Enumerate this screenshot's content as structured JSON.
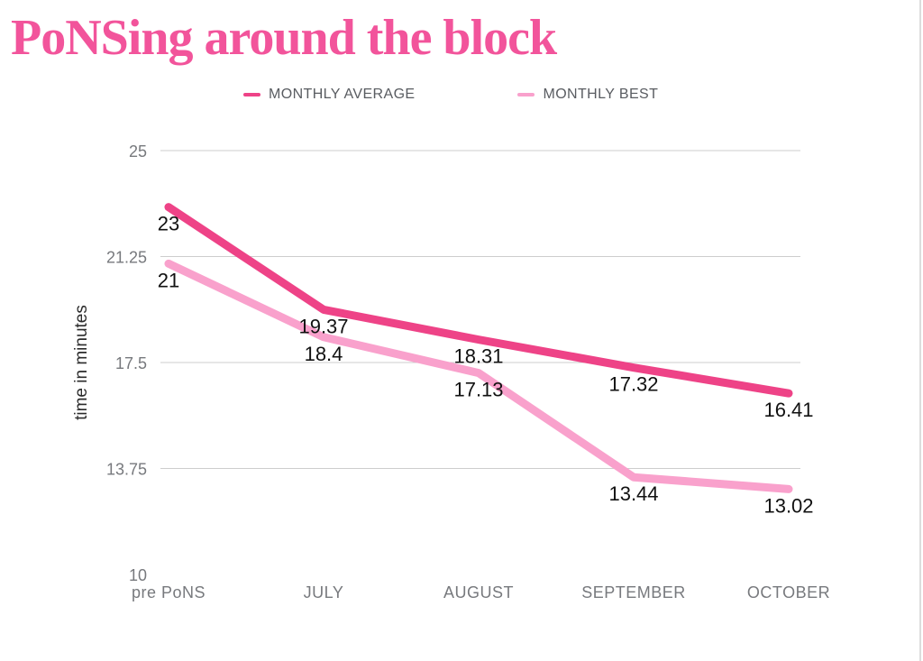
{
  "title": {
    "text": "PoNSing around the block",
    "color": "#f2549b"
  },
  "legend": {
    "items": [
      {
        "label": "MONTHLY AVERAGE",
        "color": "#ee4387"
      },
      {
        "label": "MONTHLY BEST",
        "color": "#f9a1cc"
      }
    ],
    "text_color": "#595c61"
  },
  "chart_data": {
    "type": "line",
    "title": "PoNSing around the block",
    "categories": [
      "pre PoNS",
      "JULY",
      "AUGUST",
      "SEPTEMBER",
      "OCTOBER"
    ],
    "series": [
      {
        "name": "MONTHLY AVERAGE",
        "color": "#ee4387",
        "values": [
          23,
          19.37,
          18.31,
          17.32,
          16.41
        ],
        "labels": [
          "23",
          "19.37",
          "18.31",
          "17.32",
          "16.41"
        ]
      },
      {
        "name": "MONTHLY BEST",
        "color": "#f9a1cc",
        "values": [
          21,
          18.4,
          17.13,
          13.44,
          13.02
        ],
        "labels": [
          "21",
          "18.4",
          "17.13",
          "13.44",
          "13.02"
        ]
      }
    ],
    "xlabel": "",
    "ylabel": "time in minutes",
    "ylim": [
      10,
      25
    ],
    "yticks": [
      25,
      21.25,
      17.5,
      13.75,
      10
    ],
    "ytick_labels": [
      "25",
      "21.25",
      "17.5",
      "13.75",
      "10"
    ],
    "gridlines_at": [
      25,
      21.25,
      17.5,
      13.75
    ],
    "grid": true,
    "legend_position": "top",
    "value_label_color": "#111111",
    "axis_text_color": "#77797d",
    "ylabel_color": "#2b2b2b",
    "gridline_color": "#cdcdcd"
  }
}
